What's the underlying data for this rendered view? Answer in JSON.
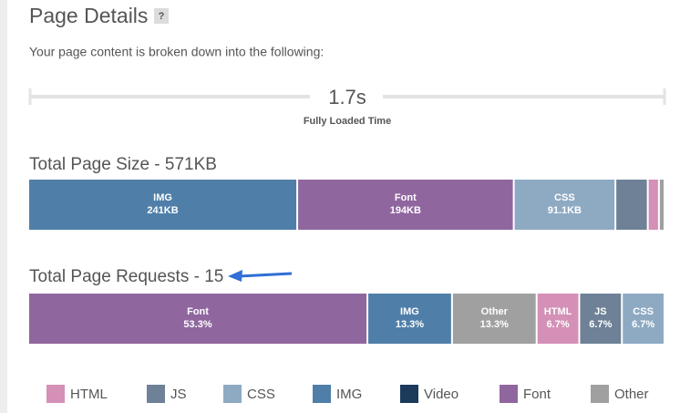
{
  "header": {
    "title": "Page Details",
    "help": "?"
  },
  "intro": "Your page content is broken down into the following:",
  "fully_loaded": {
    "value": "1.7s",
    "label": "Fully Loaded Time"
  },
  "size_chart": {
    "title": "Total Page Size - 571KB",
    "segments": [
      {
        "name": "IMG",
        "value": 241,
        "value_label": "241KB",
        "color": "#4f7fa9"
      },
      {
        "name": "Font",
        "value": 194,
        "value_label": "194KB",
        "color": "#90669f"
      },
      {
        "name": "CSS",
        "value": 91.1,
        "value_label": "91.1KB",
        "color": "#8eaac3"
      },
      {
        "value": 29,
        "color": "#6e8196"
      },
      {
        "value": 10,
        "color": "#d490b6"
      },
      {
        "value": 5,
        "color": "#a0a0a0"
      }
    ]
  },
  "requests_chart": {
    "title": "Total Page Requests - 15",
    "segments": [
      {
        "name": "Font",
        "value": 53.3,
        "value_label": "53.3%",
        "color": "#90669f"
      },
      {
        "name": "IMG",
        "value": 13.3,
        "value_label": "13.3%",
        "color": "#4f7fa9"
      },
      {
        "name": "Other",
        "value": 13.3,
        "value_label": "13.3%",
        "color": "#a0a0a0"
      },
      {
        "name": "HTML",
        "value": 6.7,
        "value_label": "6.7%",
        "color": "#d490b6"
      },
      {
        "name": "JS",
        "value": 6.7,
        "value_label": "6.7%",
        "color": "#6e8196"
      },
      {
        "name": "CSS",
        "value": 6.7,
        "value_label": "6.7%",
        "color": "#8eaac3"
      }
    ]
  },
  "legend": [
    {
      "name": "HTML",
      "color": "#d490b6"
    },
    {
      "name": "JS",
      "color": "#6e8196"
    },
    {
      "name": "CSS",
      "color": "#8eaac3"
    },
    {
      "name": "IMG",
      "color": "#4f7fa9"
    },
    {
      "name": "Video",
      "color": "#1b3a5c"
    },
    {
      "name": "Font",
      "color": "#90669f"
    },
    {
      "name": "Other",
      "color": "#a0a0a0"
    }
  ]
}
